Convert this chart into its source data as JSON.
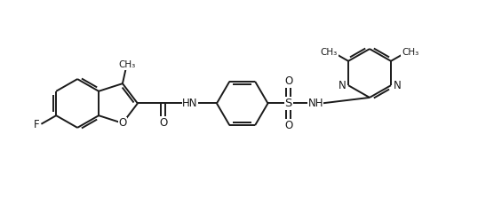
{
  "bg_color": "#ffffff",
  "line_color": "#1a1a1a",
  "line_width": 1.4,
  "font_size": 8.5,
  "figsize": [
    5.56,
    2.22
  ],
  "dpi": 100,
  "xlim": [
    0,
    10
  ],
  "ylim": [
    0,
    4
  ]
}
